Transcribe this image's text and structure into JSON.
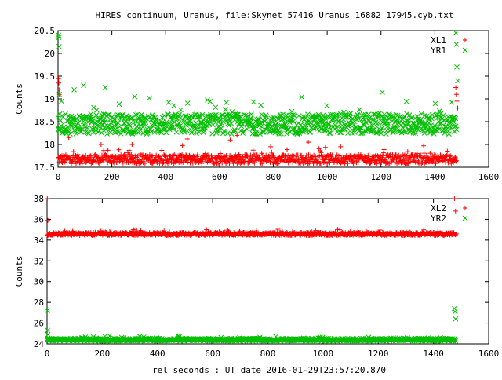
{
  "title": "HIRES continuum, Uranus, file:Skynet_57416_Uranus_16882_17945.cyb.txt",
  "xlabel": "rel seconds : UT date 2016-01-29T23:57:20.870",
  "colors": {
    "red": "#ff0000",
    "green": "#00c000",
    "axis": "#000000"
  },
  "chart_data": [
    {
      "type": "scatter",
      "title": "",
      "xlabel": "",
      "ylabel": "Counts",
      "xlim": [
        0,
        1600
      ],
      "ylim": [
        17.5,
        20.5
      ],
      "xticks": [
        0,
        200,
        400,
        600,
        800,
        1000,
        1200,
        1400,
        1600
      ],
      "yticks": [
        17.5,
        18,
        18.5,
        19,
        19.5,
        20,
        20.5
      ],
      "ytick_labels": [
        "17.5",
        "18",
        "18.5",
        "19",
        "19.5",
        "20",
        "20.5"
      ],
      "legend_position": "top-right",
      "series": [
        {
          "name": "XL1",
          "marker": "plus",
          "color": "#ff0000",
          "x_range": [
            0,
            1480
          ],
          "baseline": 17.68,
          "band": 0.1,
          "spikes": [
            {
              "x": 2,
              "y": 19.45
            },
            {
              "x": 3,
              "y": 19.35
            },
            {
              "x": 4,
              "y": 19.2
            },
            {
              "x": 5,
              "y": 19.1
            },
            {
              "x": 40,
              "y": 18.15
            },
            {
              "x": 160,
              "y": 18.0
            },
            {
              "x": 275,
              "y": 18.0
            },
            {
              "x": 480,
              "y": 18.12
            },
            {
              "x": 640,
              "y": 18.1
            },
            {
              "x": 665,
              "y": 18.2
            },
            {
              "x": 735,
              "y": 18.2
            },
            {
              "x": 790,
              "y": 17.95
            },
            {
              "x": 930,
              "y": 18.05
            },
            {
              "x": 1050,
              "y": 17.95
            },
            {
              "x": 1478,
              "y": 19.25
            },
            {
              "x": 1480,
              "y": 19.1
            },
            {
              "x": 1482,
              "y": 18.95
            },
            {
              "x": 1485,
              "y": 18.8
            }
          ]
        },
        {
          "name": "YR1",
          "marker": "cross",
          "color": "#00c000",
          "x_range": [
            0,
            1480
          ],
          "baseline": 18.45,
          "band": 0.22,
          "spikes": [
            {
              "x": 2,
              "y": 20.4
            },
            {
              "x": 3,
              "y": 20.35
            },
            {
              "x": 4,
              "y": 20.15
            },
            {
              "x": 5,
              "y": 19.1
            },
            {
              "x": 60,
              "y": 19.2
            },
            {
              "x": 95,
              "y": 19.3
            },
            {
              "x": 175,
              "y": 19.25
            },
            {
              "x": 285,
              "y": 19.05
            },
            {
              "x": 1478,
              "y": 20.45
            },
            {
              "x": 1480,
              "y": 20.2
            },
            {
              "x": 1482,
              "y": 19.7
            },
            {
              "x": 1485,
              "y": 19.4
            }
          ]
        }
      ]
    },
    {
      "type": "scatter",
      "title": "",
      "xlabel": "rel seconds : UT date 2016-01-29T23:57:20.870",
      "ylabel": "Counts",
      "xlim": [
        0,
        1600
      ],
      "ylim": [
        24,
        38
      ],
      "xticks": [
        0,
        200,
        400,
        600,
        800,
        1000,
        1200,
        1400,
        1600
      ],
      "yticks": [
        24,
        26,
        28,
        30,
        32,
        34,
        36,
        38
      ],
      "ytick_labels": [
        "24",
        "26",
        "28",
        "30",
        "32",
        "34",
        "36",
        "38"
      ],
      "legend_position": "top-right",
      "series": [
        {
          "name": "XL2",
          "marker": "plus",
          "color": "#ff0000",
          "x_range": [
            0,
            1480
          ],
          "baseline": 34.6,
          "band": 0.15,
          "spikes": [
            {
              "x": 1,
              "y": 38.0
            },
            {
              "x": 3,
              "y": 35.9
            },
            {
              "x": 1476,
              "y": 38.0
            },
            {
              "x": 1480,
              "y": 36.8
            },
            {
              "x": 1483,
              "y": 34.6
            }
          ]
        },
        {
          "name": "YR2",
          "marker": "cross",
          "color": "#00c000",
          "x_range": [
            0,
            1480
          ],
          "baseline": 24.4,
          "band": 0.12,
          "spikes": [
            {
              "x": 1,
              "y": 27.2
            },
            {
              "x": 2,
              "y": 25.3
            },
            {
              "x": 3,
              "y": 24.9
            },
            {
              "x": 1476,
              "y": 27.4
            },
            {
              "x": 1478,
              "y": 27.1
            },
            {
              "x": 1480,
              "y": 26.4
            }
          ]
        }
      ]
    }
  ]
}
